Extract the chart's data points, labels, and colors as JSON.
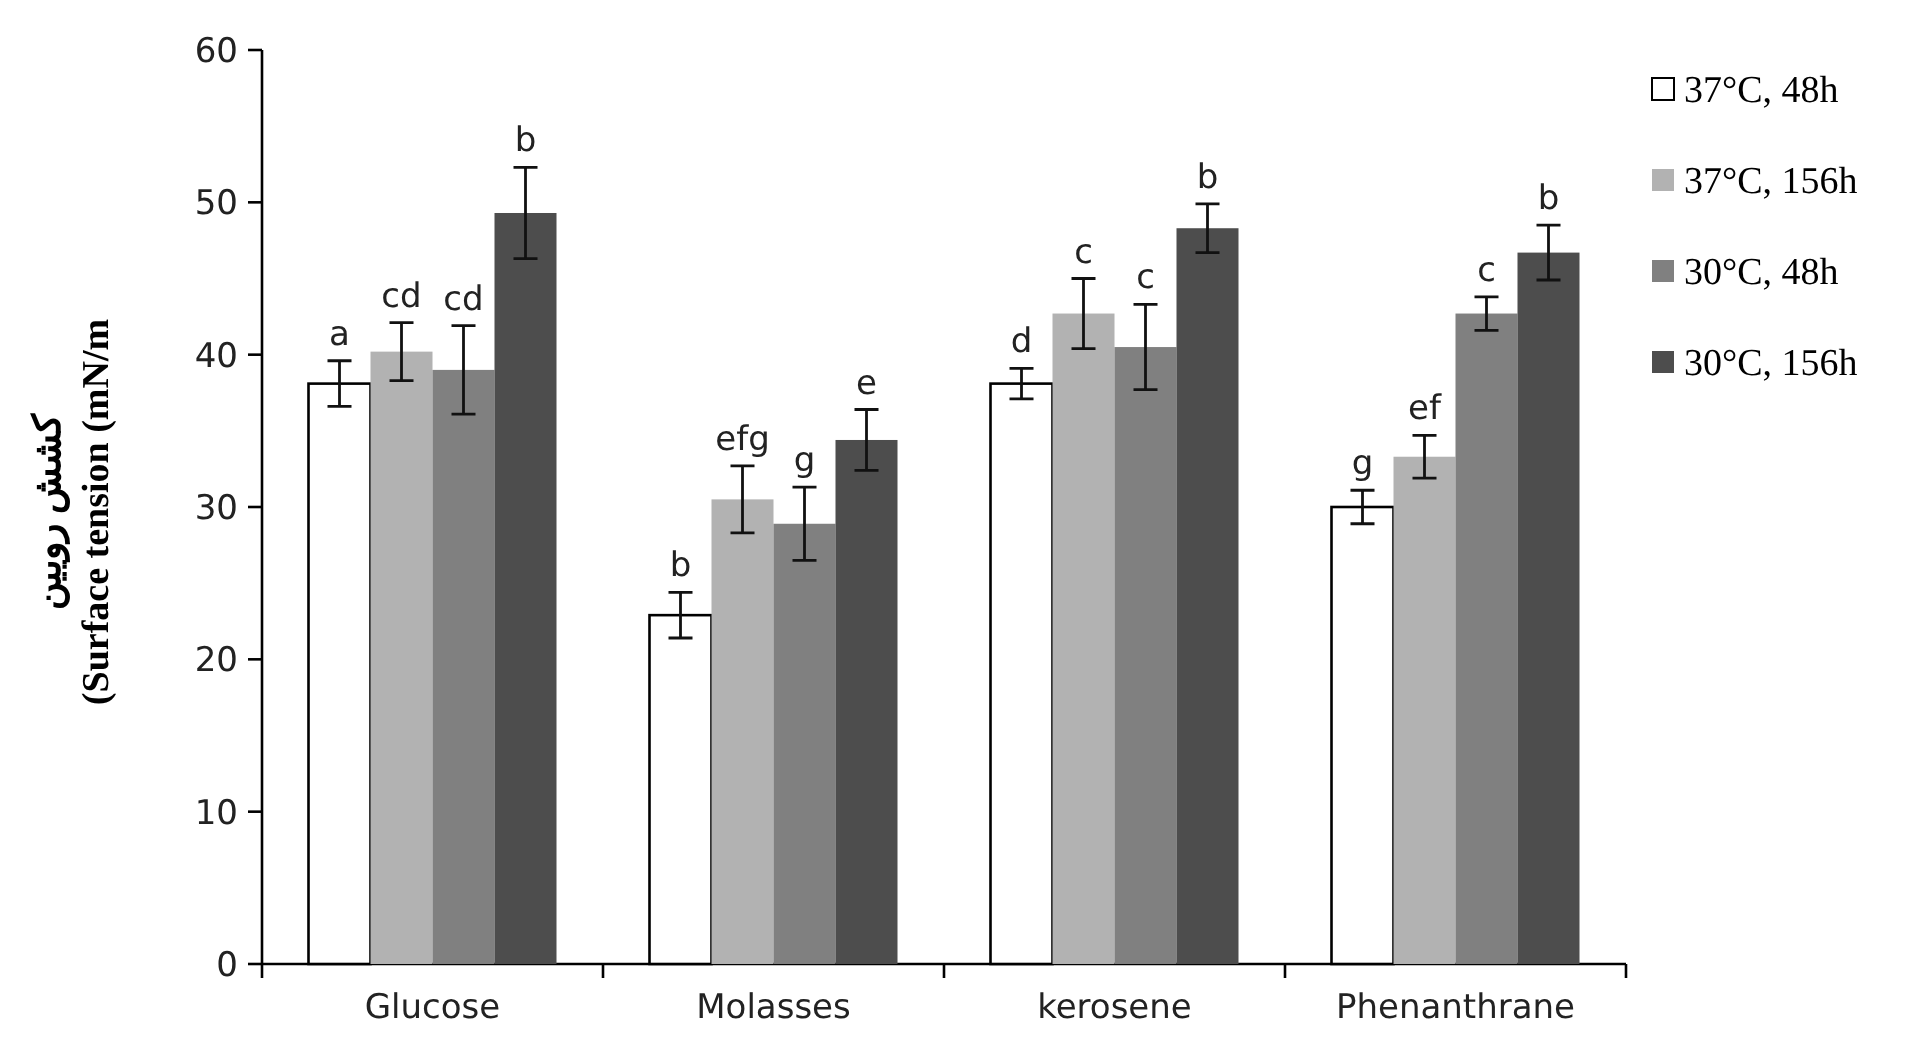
{
  "chart_data": {
    "type": "bar",
    "ylabel": "کشش رویین\n(Surface tension (mN/m",
    "categories": [
      "Glucose",
      "Molasses",
      "kerosene",
      "Phenanthrane"
    ],
    "ylim": [
      0,
      60
    ],
    "yticks": [
      0,
      10,
      20,
      30,
      40,
      50,
      60
    ],
    "legend": "right",
    "grid": false,
    "series": [
      {
        "name": "37°C, 48h",
        "color": "#ffffff",
        "values": [
          38.1,
          22.9,
          38.1,
          30.0
        ],
        "errors": [
          1.5,
          1.5,
          1.0,
          1.1
        ],
        "value_labels": [
          "a",
          "b",
          "d",
          "g"
        ]
      },
      {
        "name": "37°C, 156h",
        "color": "#b2b2b2",
        "values": [
          40.2,
          30.5,
          42.7,
          33.3
        ],
        "errors": [
          1.9,
          2.2,
          2.3,
          1.4
        ],
        "value_labels": [
          "cd",
          "efg",
          "c",
          "ef"
        ]
      },
      {
        "name": "30°C, 48h",
        "color": "#808080",
        "values": [
          39.0,
          28.9,
          40.5,
          42.7
        ],
        "errors": [
          2.9,
          2.4,
          2.8,
          1.1
        ],
        "value_labels": [
          "cd",
          "g",
          "c",
          "c"
        ]
      },
      {
        "name": "30°C, 156h",
        "color": "#4d4d4d",
        "values": [
          49.3,
          34.4,
          48.3,
          46.7
        ],
        "errors": [
          3.0,
          2.0,
          1.6,
          1.8
        ],
        "value_labels": [
          "b",
          "e",
          "b",
          "b"
        ]
      }
    ]
  }
}
